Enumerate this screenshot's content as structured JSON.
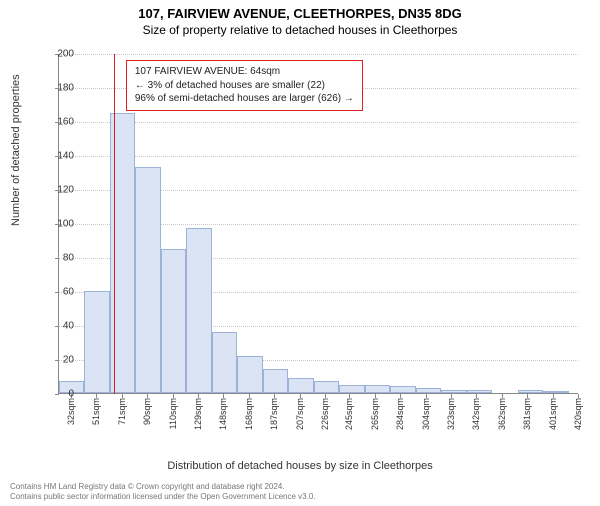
{
  "title_main": "107, FAIRVIEW AVENUE, CLEETHORPES, DN35 8DG",
  "title_sub": "Size of property relative to detached houses in Cleethorpes",
  "ylabel": "Number of detached properties",
  "xlabel": "Distribution of detached houses by size in Cleethorpes",
  "annotation": {
    "line1": "107 FAIRVIEW AVENUE: 64sqm",
    "line2": "← 3% of detached houses are smaller (22)",
    "line3": "96% of semi-detached houses are larger (626) →"
  },
  "footer": {
    "line1": "Contains HM Land Registry data © Crown copyright and database right 2024.",
    "line2": "Contains public sector information licensed under the Open Government Licence v3.0."
  },
  "chart": {
    "type": "histogram",
    "ylim": [
      0,
      200
    ],
    "ytick_step": 20,
    "bar_fill": "#dbe4f5",
    "bar_stroke": "#9bb2d9",
    "grid_color": "#c8c8c8",
    "axis_color": "#888888",
    "marker_color": "#e02020",
    "marker_x_sqm": 64,
    "x_start_sqm": 22,
    "x_step_sqm": 19.5,
    "xticks_sqm": [
      32,
      51,
      71,
      90,
      110,
      129,
      148,
      168,
      187,
      207,
      226,
      245,
      265,
      284,
      304,
      323,
      342,
      362,
      381,
      401,
      420
    ],
    "values": [
      7,
      60,
      165,
      133,
      85,
      97,
      36,
      22,
      14,
      9,
      7,
      5,
      5,
      4,
      3,
      2,
      2,
      0,
      2,
      1
    ]
  }
}
